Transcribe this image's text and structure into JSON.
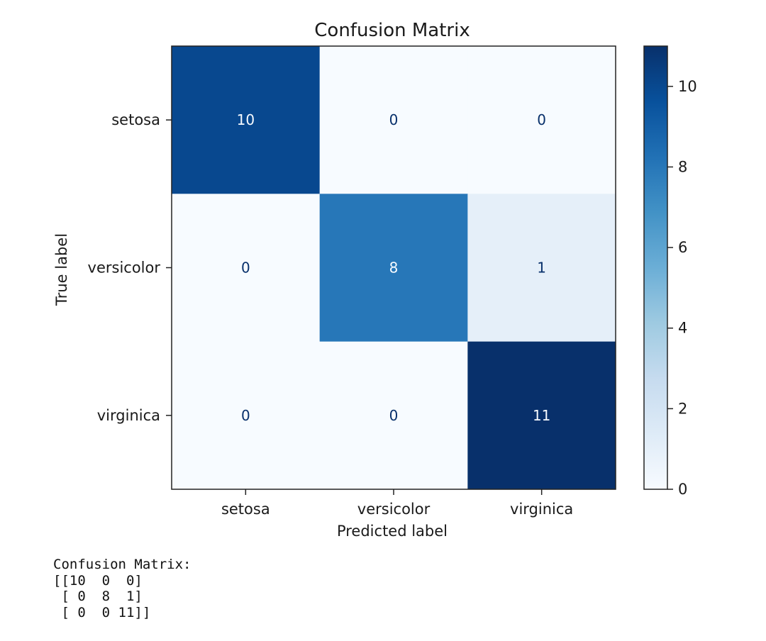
{
  "chart_data": {
    "type": "heatmap",
    "title": "Confusion Matrix",
    "xlabel": "Predicted label",
    "ylabel": "True label",
    "x_categories": [
      "setosa",
      "versicolor",
      "virginica"
    ],
    "y_categories": [
      "setosa",
      "versicolor",
      "virginica"
    ],
    "values": [
      [
        10,
        0,
        0
      ],
      [
        0,
        8,
        1
      ],
      [
        0,
        0,
        11
      ]
    ],
    "colormap": "Blues",
    "colorbar": {
      "min": 0,
      "max": 11,
      "ticks": [
        0,
        2,
        4,
        6,
        8,
        10
      ]
    },
    "grid": false
  },
  "console": {
    "heading": "Confusion Matrix:",
    "lines": [
      "[[10  0  0]",
      " [ 0  8  1]",
      " [ 0  0 11]]"
    ]
  }
}
